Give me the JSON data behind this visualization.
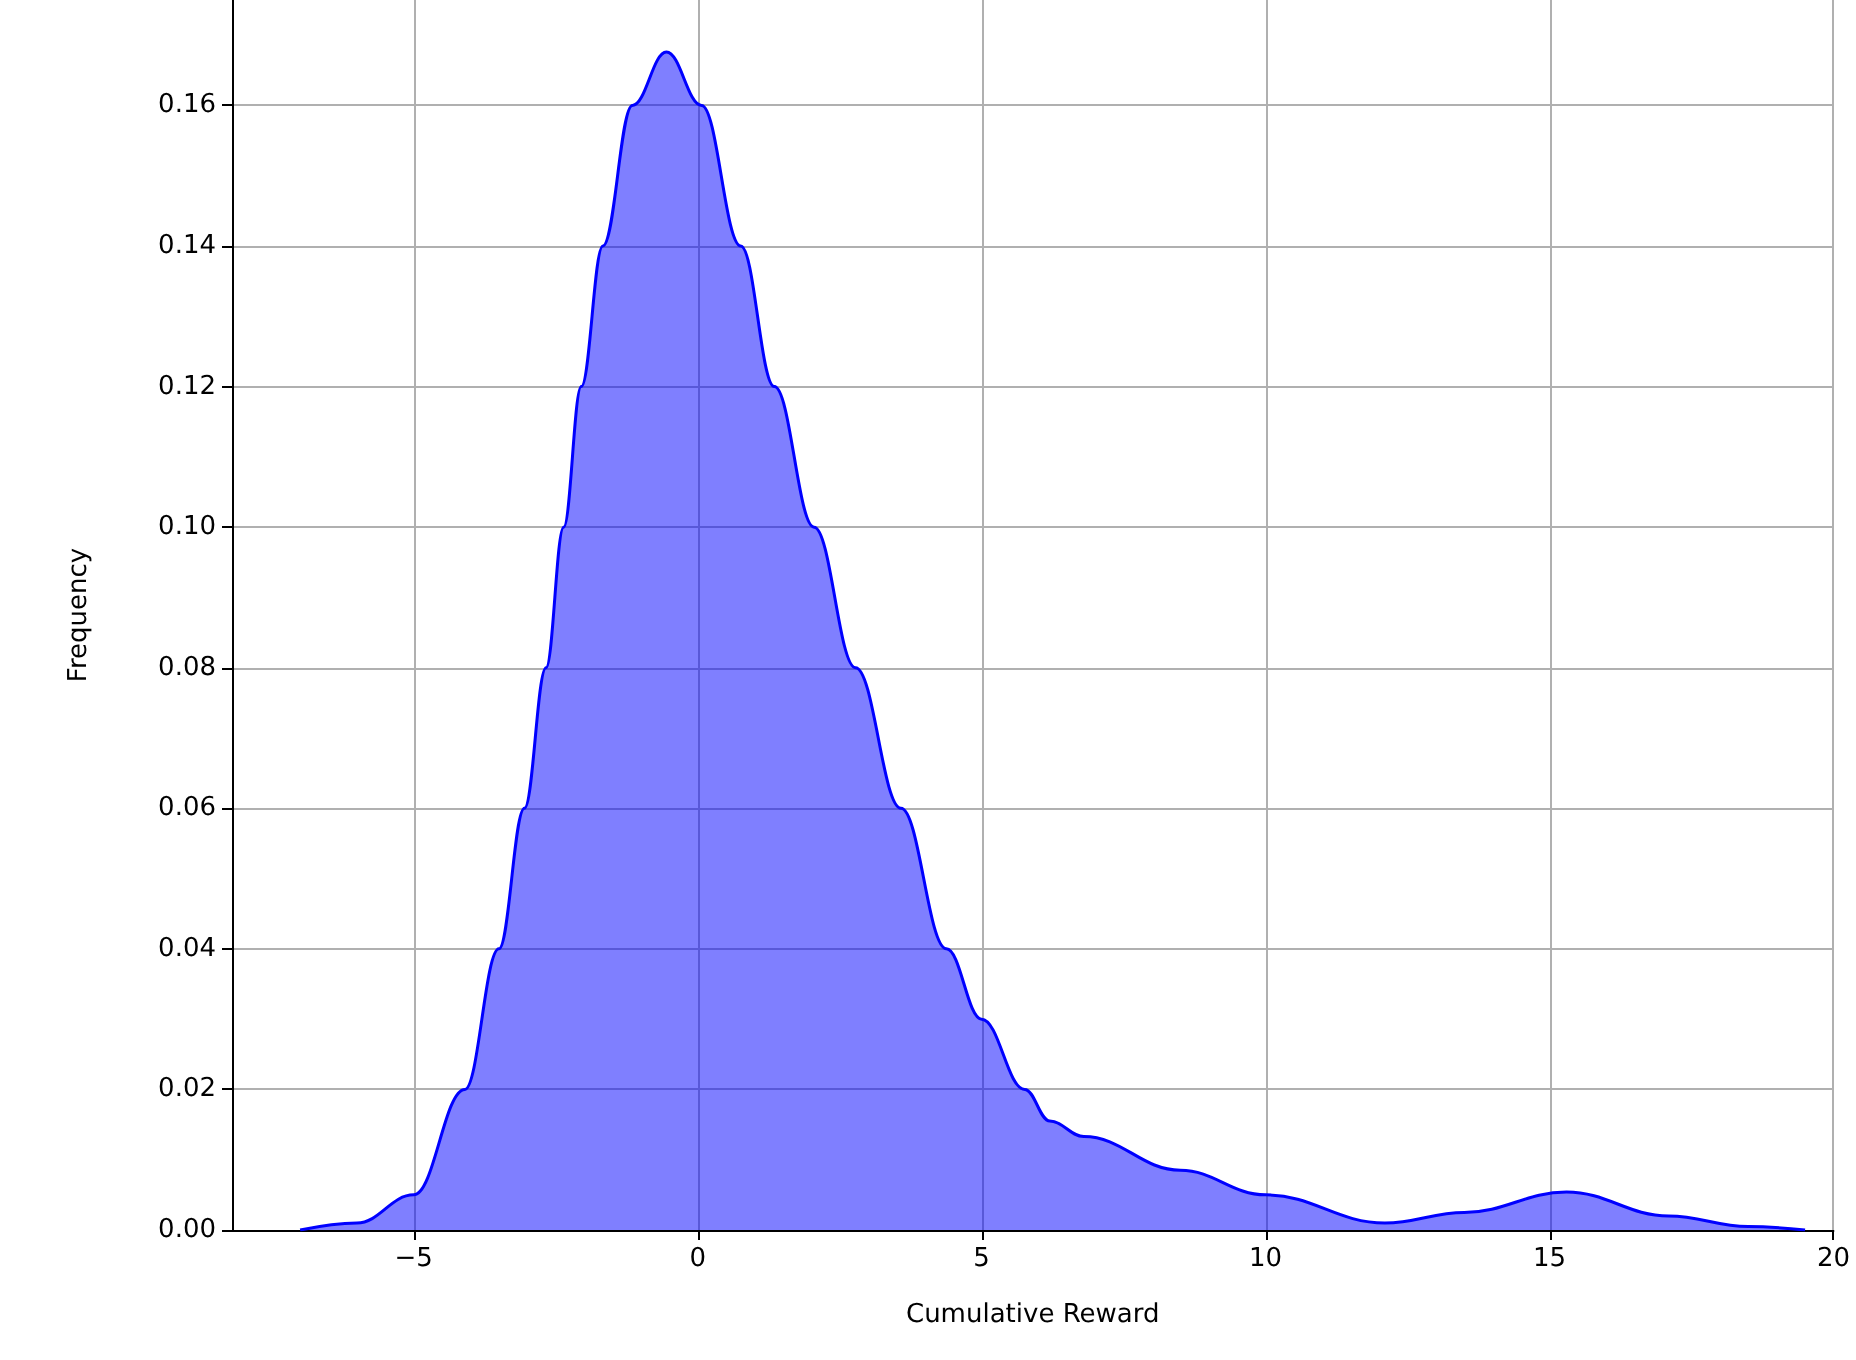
{
  "chart_data": {
    "type": "area",
    "xlabel": "Cumulative Reward",
    "ylabel": "Frequency",
    "x": [
      -7,
      -6,
      -5,
      -4.1,
      -3.5,
      -3.05,
      -2.67,
      -2.36,
      -2.05,
      -1.67,
      -1.15,
      -0.55,
      0.07,
      0.76,
      1.35,
      2.05,
      2.78,
      3.58,
      4.38,
      5.0,
      5.76,
      6.2,
      6.8,
      8.5,
      10,
      12.1,
      13.5,
      15.3,
      17.1,
      18.5,
      19.5
    ],
    "series": [
      {
        "color": "#0000ff",
        "values": [
          0,
          0.001,
          0.005,
          0.02,
          0.04,
          0.06,
          0.08,
          0.1,
          0.12,
          0.14,
          0.16,
          0.1676,
          0.16,
          0.14,
          0.12,
          0.1,
          0.08,
          0.06,
          0.04,
          0.03,
          0.02,
          0.0155,
          0.0133,
          0.0085,
          0.005,
          0.001,
          0.0025,
          0.0054,
          0.002,
          0.0005,
          0
        ]
      }
    ],
    "xlim": [
      -8.2,
      20
    ],
    "xticks": [
      {
        "value": -5,
        "label": "−5"
      },
      0,
      5,
      10,
      15,
      20
    ],
    "ylim": [
      0,
      0.175
    ],
    "yticks": [
      {
        "value": 0,
        "label": "0.00"
      },
      {
        "value": 0.02,
        "label": "0.02"
      },
      {
        "value": 0.04,
        "label": "0.04"
      },
      {
        "value": 0.06,
        "label": "0.06"
      },
      {
        "value": 0.08,
        "label": "0.08"
      },
      {
        "value": 0.1,
        "label": "0.10"
      },
      {
        "value": 0.12,
        "label": "0.12"
      },
      {
        "value": 0.14,
        "label": "0.14"
      },
      {
        "value": 0.16,
        "label": "0.16"
      }
    ],
    "grid": true,
    "marker": "none",
    "line_style": "solid"
  }
}
